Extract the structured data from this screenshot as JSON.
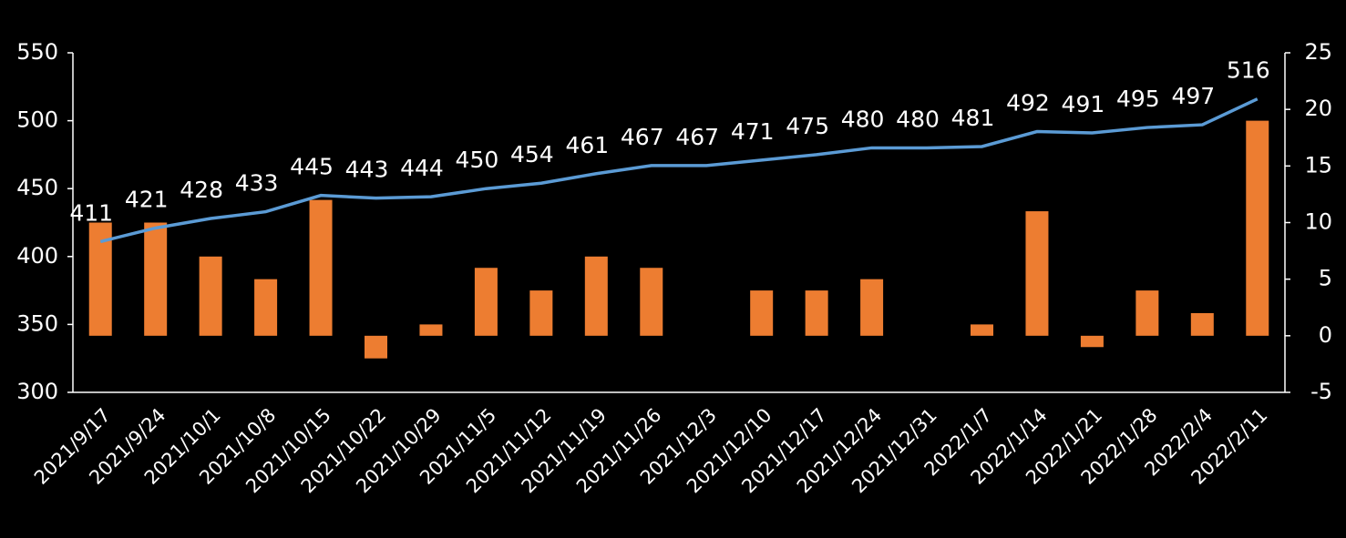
{
  "chart_data": {
    "type": "bar-line",
    "categories": [
      "2021/9/17",
      "2021/9/24",
      "2021/10/1",
      "2021/10/8",
      "2021/10/15",
      "2021/10/22",
      "2021/10/29",
      "2021/11/5",
      "2021/11/12",
      "2021/11/19",
      "2021/11/26",
      "2021/12/3",
      "2021/12/10",
      "2021/12/17",
      "2021/12/24",
      "2021/12/31",
      "2022/1/7",
      "2022/1/14",
      "2022/1/21",
      "2022/1/28",
      "2022/2/4",
      "2022/2/11"
    ],
    "series": [
      {
        "type": "bar",
        "axis": "y2",
        "color": "#ed7d31",
        "values": [
          10,
          10,
          7,
          5,
          12,
          -2,
          1,
          6,
          4,
          7,
          6,
          0,
          4,
          4,
          5,
          0,
          1,
          11,
          -1,
          4,
          2,
          19
        ]
      },
      {
        "type": "line",
        "color": "#5b9bd5",
        "values": [
          411,
          421,
          428,
          433,
          445,
          443,
          444,
          450,
          454,
          461,
          467,
          467,
          471,
          475,
          480,
          480,
          481,
          492,
          491,
          495,
          497,
          516
        ],
        "data_labels": true
      }
    ],
    "ylim": [
      300,
      550
    ],
    "yticks": [
      300,
      350,
      400,
      450,
      500,
      550
    ],
    "y2lim": [
      -5,
      25
    ],
    "y2ticks": [
      -5,
      0,
      5,
      10,
      15,
      20,
      25
    ]
  }
}
